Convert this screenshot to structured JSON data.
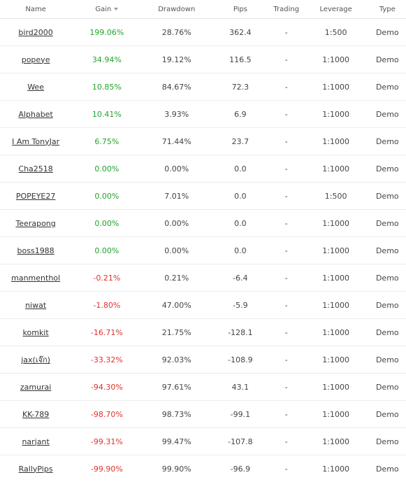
{
  "columns": {
    "name": "Name",
    "gain": "Gain",
    "drawdown": "Drawdown",
    "pips": "Pips",
    "trading": "Trading",
    "leverage": "Leverage",
    "type": "Type"
  },
  "rows": [
    {
      "name": "bird2000",
      "gain": "199.06%",
      "gain_sign": "pos",
      "drawdown": "28.76%",
      "pips": "362.4",
      "trading": "-",
      "leverage": "1:500",
      "type": "Demo"
    },
    {
      "name": "popeye",
      "gain": "34.94%",
      "gain_sign": "pos",
      "drawdown": "19.12%",
      "pips": "116.5",
      "trading": "-",
      "leverage": "1:1000",
      "type": "Demo"
    },
    {
      "name": "Wee",
      "gain": "10.85%",
      "gain_sign": "pos",
      "drawdown": "84.67%",
      "pips": "72.3",
      "trading": "-",
      "leverage": "1:1000",
      "type": "Demo"
    },
    {
      "name": "Alphabet",
      "gain": "10.41%",
      "gain_sign": "pos",
      "drawdown": "3.93%",
      "pips": "6.9",
      "trading": "-",
      "leverage": "1:1000",
      "type": "Demo"
    },
    {
      "name": "I Am TonyJar",
      "gain": "6.75%",
      "gain_sign": "pos",
      "drawdown": "71.44%",
      "pips": "23.7",
      "trading": "-",
      "leverage": "1:1000",
      "type": "Demo"
    },
    {
      "name": "Cha2518",
      "gain": "0.00%",
      "gain_sign": "pos",
      "drawdown": "0.00%",
      "pips": "0.0",
      "trading": "-",
      "leverage": "1:1000",
      "type": "Demo"
    },
    {
      "name": "POPEYE27",
      "gain": "0.00%",
      "gain_sign": "pos",
      "drawdown": "7.01%",
      "pips": "0.0",
      "trading": "-",
      "leverage": "1:500",
      "type": "Demo"
    },
    {
      "name": "Teerapong",
      "gain": "0.00%",
      "gain_sign": "pos",
      "drawdown": "0.00%",
      "pips": "0.0",
      "trading": "-",
      "leverage": "1:1000",
      "type": "Demo"
    },
    {
      "name": "boss1988",
      "gain": "0.00%",
      "gain_sign": "pos",
      "drawdown": "0.00%",
      "pips": "0.0",
      "trading": "-",
      "leverage": "1:1000",
      "type": "Demo"
    },
    {
      "name": "manmenthol",
      "gain": "-0.21%",
      "gain_sign": "neg",
      "drawdown": "0.21%",
      "pips": "-6.4",
      "trading": "-",
      "leverage": "1:1000",
      "type": "Demo"
    },
    {
      "name": "niwat",
      "gain": "-1.80%",
      "gain_sign": "neg",
      "drawdown": "47.00%",
      "pips": "-5.9",
      "trading": "-",
      "leverage": "1:1000",
      "type": "Demo"
    },
    {
      "name": "komkit",
      "gain": "-16.71%",
      "gain_sign": "neg",
      "drawdown": "21.75%",
      "pips": "-128.1",
      "trading": "-",
      "leverage": "1:1000",
      "type": "Demo"
    },
    {
      "name": "jax(เจ๊ก)",
      "gain": "-33.32%",
      "gain_sign": "neg",
      "drawdown": "92.03%",
      "pips": "-108.9",
      "trading": "-",
      "leverage": "1:1000",
      "type": "Demo"
    },
    {
      "name": "zamurai",
      "gain": "-94.30%",
      "gain_sign": "neg",
      "drawdown": "97.61%",
      "pips": "43.1",
      "trading": "-",
      "leverage": "1:1000",
      "type": "Demo"
    },
    {
      "name": "KK-789",
      "gain": "-98.70%",
      "gain_sign": "neg",
      "drawdown": "98.73%",
      "pips": "-99.1",
      "trading": "-",
      "leverage": "1:1000",
      "type": "Demo"
    },
    {
      "name": "narjant",
      "gain": "-99.31%",
      "gain_sign": "neg",
      "drawdown": "99.47%",
      "pips": "-107.8",
      "trading": "-",
      "leverage": "1:1000",
      "type": "Demo"
    },
    {
      "name": "RallyPips",
      "gain": "-99.90%",
      "gain_sign": "neg",
      "drawdown": "99.90%",
      "pips": "-96.9",
      "trading": "-",
      "leverage": "1:1000",
      "type": "Demo"
    }
  ],
  "colors": {
    "positive": "#22a32b",
    "negative": "#e0322d"
  },
  "sort": {
    "column": "gain",
    "direction": "desc",
    "icon": "sort-down-icon"
  }
}
